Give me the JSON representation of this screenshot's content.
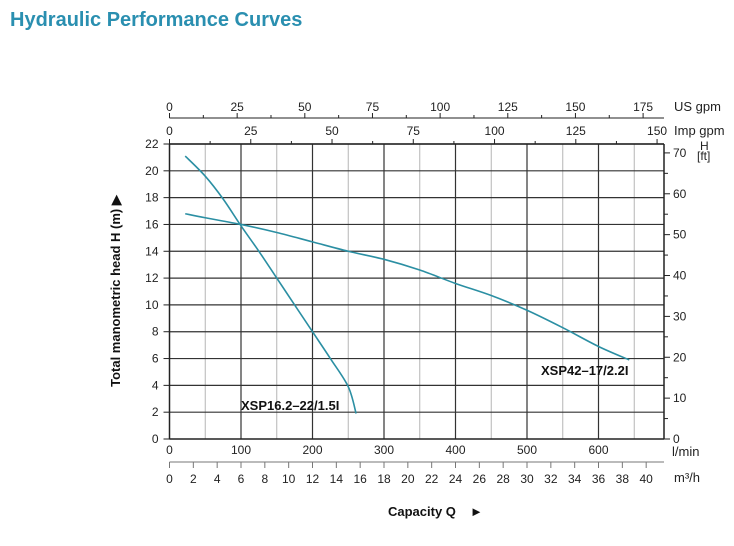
{
  "page": {
    "title": "Hydraulic Performance Curves"
  },
  "chart_data": {
    "type": "line",
    "title": "Hydraulic Performance Curves",
    "xlabel": "Capacity Q",
    "ylabel": "Total manometric head H (m)",
    "xlim": [
      0,
      655
    ],
    "ylim": [
      0,
      22
    ],
    "grid": true,
    "colors": {
      "curve": "#2b8fa3",
      "grid_major": "#333333",
      "grid_minor": "#b5b5b5",
      "title": "#2a8fb0"
    },
    "x_axis": {
      "unit": "l/min",
      "ticks": [
        0,
        100,
        200,
        300,
        400,
        500,
        600
      ]
    },
    "y_axis": {
      "unit": "m",
      "ticks": [
        0,
        2,
        4,
        6,
        8,
        10,
        12,
        14,
        16,
        18,
        20,
        22
      ]
    },
    "secondary_axes": {
      "us_gpm": {
        "unit": "US gpm",
        "factor": 3.785,
        "ticks": [
          0,
          25,
          50,
          75,
          100,
          125,
          150,
          175
        ]
      },
      "imp_gpm": {
        "unit": "Imp gpm",
        "factor": 4.546,
        "ticks": [
          0,
          25,
          50,
          75,
          100,
          125,
          150
        ]
      },
      "m3h": {
        "unit": "m³/h",
        "factor": 16.667,
        "ticks": [
          0,
          2,
          4,
          6,
          8,
          10,
          12,
          14,
          16,
          18,
          20,
          22,
          24,
          26,
          28,
          30,
          32,
          34,
          36,
          38,
          40
        ]
      },
      "head_ft": {
        "unit_top": "H",
        "unit_bottom": "[ft]",
        "factor": 0.3048,
        "ticks": [
          0,
          10,
          20,
          30,
          40,
          50,
          60,
          70
        ]
      }
    },
    "series": [
      {
        "name": "XSP16.2-22/1.5I",
        "points": [
          [
            22,
            21.1
          ],
          [
            50,
            19.6
          ],
          [
            75,
            17.9
          ],
          [
            100,
            15.9
          ],
          [
            125,
            14.0
          ],
          [
            150,
            12.0
          ],
          [
            175,
            10.0
          ],
          [
            200,
            8.0
          ],
          [
            225,
            6.0
          ],
          [
            250,
            3.9
          ],
          [
            261,
            1.9
          ]
        ]
      },
      {
        "name": "XSP42-17/2.2I",
        "points": [
          [
            22,
            16.8
          ],
          [
            50,
            16.5
          ],
          [
            100,
            16.0
          ],
          [
            150,
            15.4
          ],
          [
            200,
            14.7
          ],
          [
            250,
            14.0
          ],
          [
            300,
            13.4
          ],
          [
            350,
            12.6
          ],
          [
            400,
            11.6
          ],
          [
            450,
            10.7
          ],
          [
            500,
            9.6
          ],
          [
            550,
            8.3
          ],
          [
            600,
            6.9
          ],
          [
            643,
            5.9
          ]
        ]
      }
    ]
  }
}
